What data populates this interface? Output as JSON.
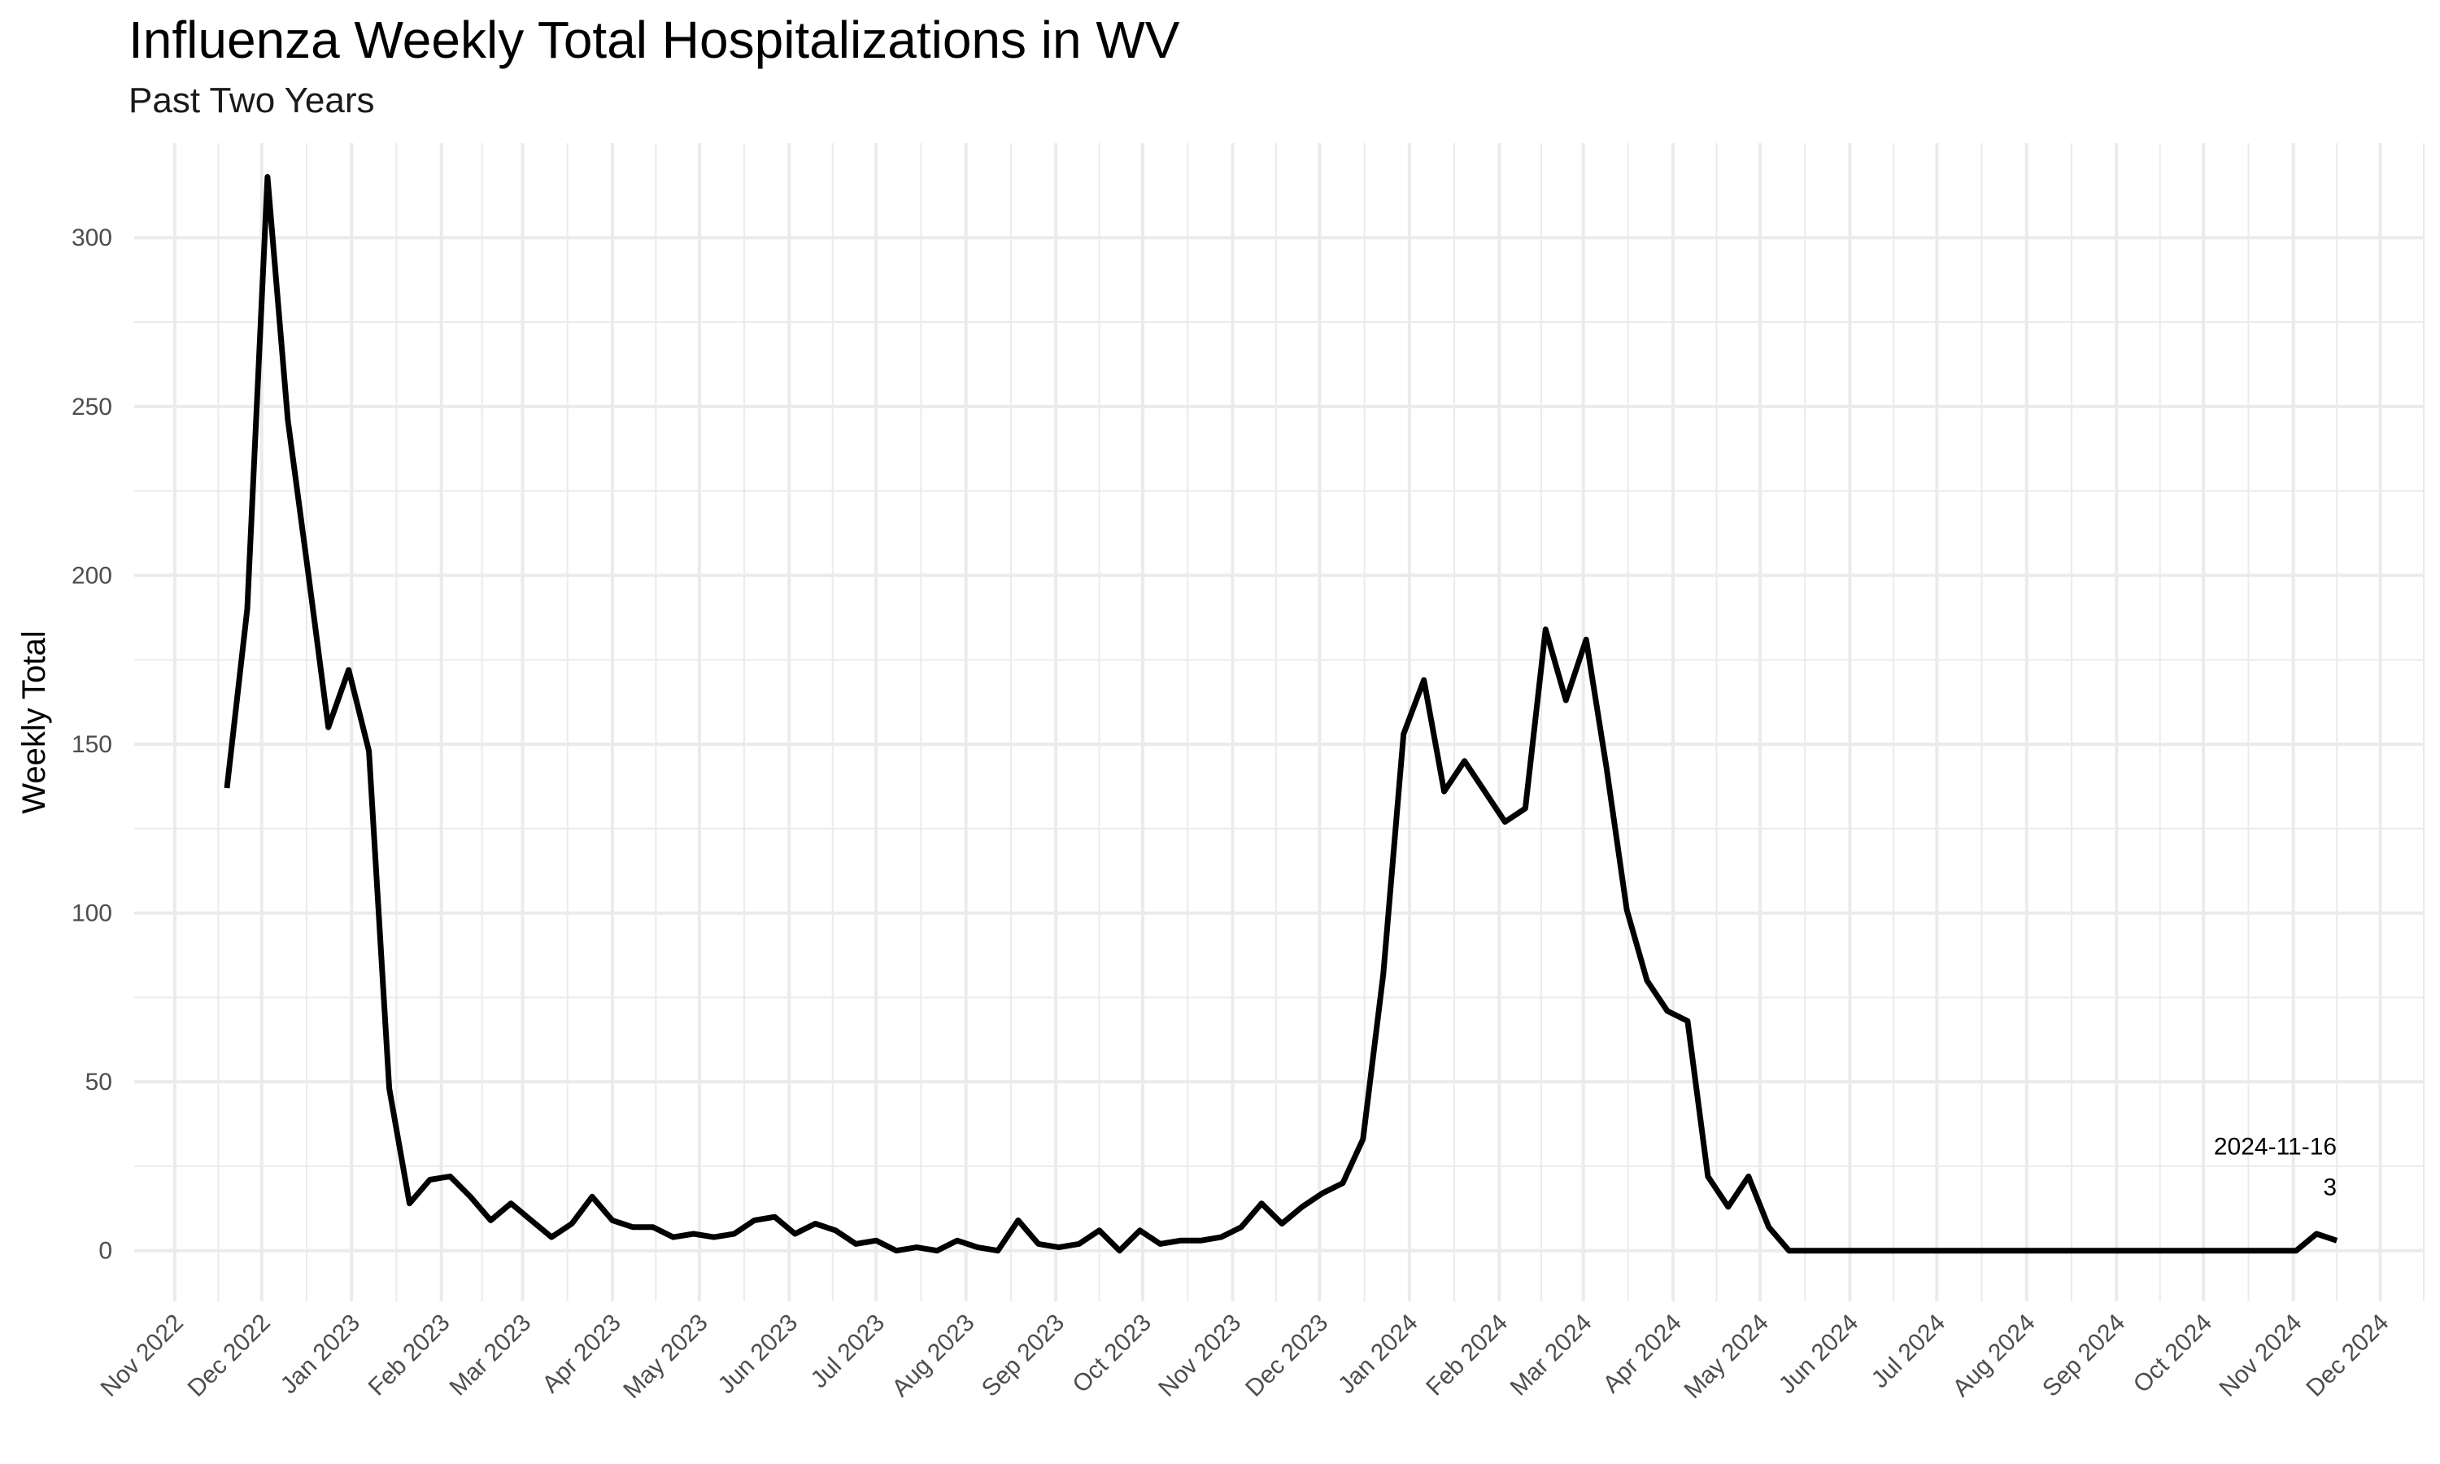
{
  "chart_data": {
    "type": "line",
    "title": "Influenza Weekly Total Hospitalizations in WV",
    "subtitle": "Past Two Years",
    "xlabel": "",
    "ylabel": "Weekly Total",
    "grid": true,
    "line_color": "#000000",
    "grid_color": "#ebebeb",
    "xlim": [
      "2022-10-18",
      "2024-12-16"
    ],
    "ylim": [
      -15,
      328
    ],
    "x_ticks": [
      {
        "date": "2022-11-01",
        "label": "Nov 2022"
      },
      {
        "date": "2022-12-01",
        "label": "Dec 2022"
      },
      {
        "date": "2023-01-01",
        "label": "Jan 2023"
      },
      {
        "date": "2023-02-01",
        "label": "Feb 2023"
      },
      {
        "date": "2023-03-01",
        "label": "Mar 2023"
      },
      {
        "date": "2023-04-01",
        "label": "Apr 2023"
      },
      {
        "date": "2023-05-01",
        "label": "May 2023"
      },
      {
        "date": "2023-06-01",
        "label": "Jun 2023"
      },
      {
        "date": "2023-07-01",
        "label": "Jul 2023"
      },
      {
        "date": "2023-08-01",
        "label": "Aug 2023"
      },
      {
        "date": "2023-09-01",
        "label": "Sep 2023"
      },
      {
        "date": "2023-10-01",
        "label": "Oct 2023"
      },
      {
        "date": "2023-11-01",
        "label": "Nov 2023"
      },
      {
        "date": "2023-12-01",
        "label": "Dec 2023"
      },
      {
        "date": "2024-01-01",
        "label": "Jan 2024"
      },
      {
        "date": "2024-02-01",
        "label": "Feb 2024"
      },
      {
        "date": "2024-03-01",
        "label": "Mar 2024"
      },
      {
        "date": "2024-04-01",
        "label": "Apr 2024"
      },
      {
        "date": "2024-05-01",
        "label": "May 2024"
      },
      {
        "date": "2024-06-01",
        "label": "Jun 2024"
      },
      {
        "date": "2024-07-01",
        "label": "Jul 2024"
      },
      {
        "date": "2024-08-01",
        "label": "Aug 2024"
      },
      {
        "date": "2024-09-01",
        "label": "Sep 2024"
      },
      {
        "date": "2024-10-01",
        "label": "Oct 2024"
      },
      {
        "date": "2024-11-01",
        "label": "Nov 2024"
      },
      {
        "date": "2024-12-01",
        "label": "Dec 2024"
      }
    ],
    "y_ticks": [
      0,
      50,
      100,
      150,
      200,
      250,
      300
    ],
    "series": [
      {
        "x": [
          "2022-11-19",
          "2022-11-26",
          "2022-12-03",
          "2022-12-10",
          "2022-12-17",
          "2022-12-24",
          "2022-12-31",
          "2023-01-07",
          "2023-01-14",
          "2023-01-21",
          "2023-01-28",
          "2023-02-04",
          "2023-02-11",
          "2023-02-18",
          "2023-02-25",
          "2023-03-04",
          "2023-03-11",
          "2023-03-18",
          "2023-03-25",
          "2023-04-01",
          "2023-04-08",
          "2023-04-15",
          "2023-04-22",
          "2023-04-29",
          "2023-05-06",
          "2023-05-13",
          "2023-05-20",
          "2023-05-27",
          "2023-06-03",
          "2023-06-10",
          "2023-06-17",
          "2023-06-24",
          "2023-07-01",
          "2023-07-08",
          "2023-07-15",
          "2023-07-22",
          "2023-07-29",
          "2023-08-05",
          "2023-08-12",
          "2023-08-19",
          "2023-08-26",
          "2023-09-02",
          "2023-09-09",
          "2023-09-16",
          "2023-09-23",
          "2023-09-30",
          "2023-10-07",
          "2023-10-14",
          "2023-10-21",
          "2023-10-28",
          "2023-11-04",
          "2023-11-11",
          "2023-11-18",
          "2023-11-25",
          "2023-12-02",
          "2023-12-09",
          "2023-12-16",
          "2023-12-23",
          "2023-12-30",
          "2024-01-06",
          "2024-01-13",
          "2024-01-20",
          "2024-01-27",
          "2024-02-03",
          "2024-02-10",
          "2024-02-17",
          "2024-02-24",
          "2024-03-02",
          "2024-03-09",
          "2024-03-16",
          "2024-03-23",
          "2024-03-30",
          "2024-04-06",
          "2024-04-13",
          "2024-04-20",
          "2024-04-27",
          "2024-05-04",
          "2024-05-11",
          "2024-05-18",
          "2024-05-25",
          "2024-06-01",
          "2024-06-08",
          "2024-06-15",
          "2024-06-22",
          "2024-06-29",
          "2024-07-06",
          "2024-07-13",
          "2024-07-20",
          "2024-07-27",
          "2024-08-03",
          "2024-08-10",
          "2024-08-17",
          "2024-08-24",
          "2024-08-31",
          "2024-09-07",
          "2024-09-14",
          "2024-09-21",
          "2024-09-28",
          "2024-10-05",
          "2024-10-12",
          "2024-10-19",
          "2024-10-26",
          "2024-11-02",
          "2024-11-09",
          "2024-11-16"
        ],
        "values": [
          137,
          190,
          318,
          246,
          201,
          155,
          172,
          148,
          48,
          14,
          21,
          22,
          16,
          9,
          14,
          9,
          4,
          8,
          16,
          9,
          7,
          7,
          4,
          5,
          4,
          5,
          9,
          10,
          5,
          8,
          6,
          2,
          3,
          0,
          1,
          0,
          3,
          1,
          0,
          9,
          2,
          1,
          2,
          6,
          0,
          6,
          2,
          3,
          3,
          4,
          7,
          14,
          8,
          13,
          17,
          20,
          33,
          82,
          153,
          169,
          136,
          145,
          136,
          127,
          131,
          184,
          163,
          181,
          143,
          101,
          80,
          71,
          68,
          22,
          13,
          22,
          7,
          0,
          0,
          0,
          0,
          0,
          0,
          0,
          0,
          0,
          0,
          0,
          0,
          0,
          0,
          0,
          0,
          0,
          0,
          0,
          0,
          0,
          0,
          0,
          0,
          0,
          0,
          5,
          3
        ]
      }
    ],
    "annotations": [
      {
        "x": "2024-11-16",
        "y": 3,
        "date_text": "2024-11-16",
        "value_text": "3"
      }
    ]
  }
}
